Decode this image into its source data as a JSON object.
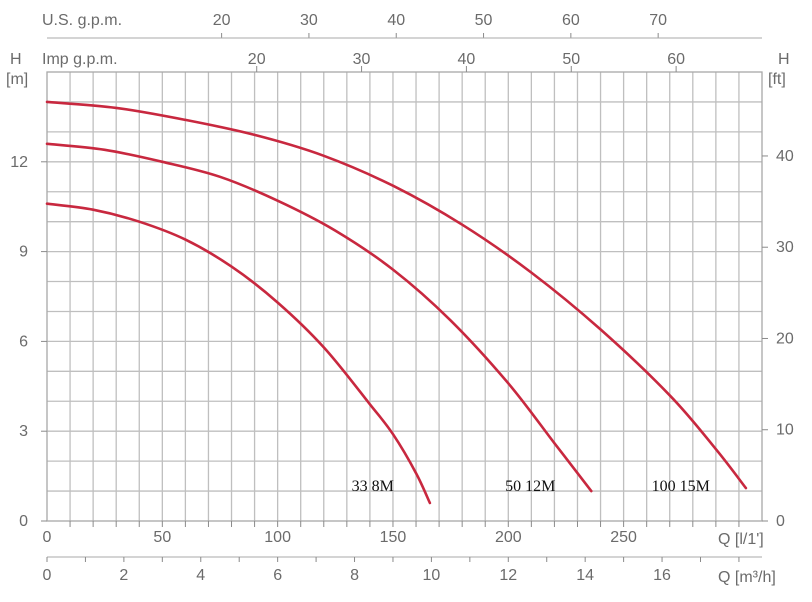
{
  "chart_data": {
    "type": "line",
    "colors": {
      "curve": "#c8283f",
      "grid": "#bfbfbf",
      "text": "#6b6b6b"
    },
    "axes": {
      "left": {
        "title": "H",
        "unit": "[m]",
        "range": [
          0,
          15
        ],
        "ticks": [
          "0",
          "3",
          "6",
          "9",
          "12"
        ]
      },
      "right": {
        "title": "H",
        "unit": "[ft]",
        "range": [
          0,
          49.2
        ],
        "ticks": [
          "0",
          "10",
          "20",
          "30",
          "40"
        ]
      },
      "bottom_ls": {
        "unit": "Q [l/1']",
        "range": [
          0,
          310
        ],
        "ticks": [
          "0",
          "50",
          "100",
          "150",
          "200",
          "250"
        ]
      },
      "bottom_m3h": {
        "unit": "Q [m³/h]",
        "range": [
          0,
          18.6
        ],
        "ticks": [
          "0",
          "2",
          "4",
          "6",
          "8",
          "10",
          "12",
          "14",
          "16"
        ]
      },
      "top_us_gpm": {
        "label": "U.S. g.p.m.",
        "ticks": [
          "20",
          "30",
          "40",
          "50",
          "60",
          "70"
        ]
      },
      "top_imp_gpm": {
        "label": "Imp g.p.m.",
        "ticks": [
          "20",
          "30",
          "40",
          "50",
          "60"
        ]
      }
    },
    "grid": true,
    "series": [
      {
        "name": "33 8M",
        "x": [
          0,
          20,
          40,
          60,
          80,
          100,
          120,
          140,
          150,
          160,
          166
        ],
        "y": [
          10.6,
          10.4,
          10.0,
          9.4,
          8.5,
          7.3,
          5.8,
          3.9,
          2.9,
          1.6,
          0.6
        ]
      },
      {
        "name": "50 12M",
        "x": [
          0,
          25,
          50,
          75,
          100,
          125,
          150,
          175,
          200,
          220,
          236
        ],
        "y": [
          12.6,
          12.4,
          12.0,
          11.5,
          10.7,
          9.7,
          8.4,
          6.7,
          4.6,
          2.6,
          1.0
        ]
      },
      {
        "name": "100 15M",
        "x": [
          0,
          30,
          60,
          90,
          120,
          150,
          180,
          210,
          240,
          270,
          290,
          303
        ],
        "y": [
          14.0,
          13.8,
          13.4,
          12.9,
          12.2,
          11.2,
          9.9,
          8.3,
          6.4,
          4.2,
          2.4,
          1.1
        ]
      }
    ]
  }
}
